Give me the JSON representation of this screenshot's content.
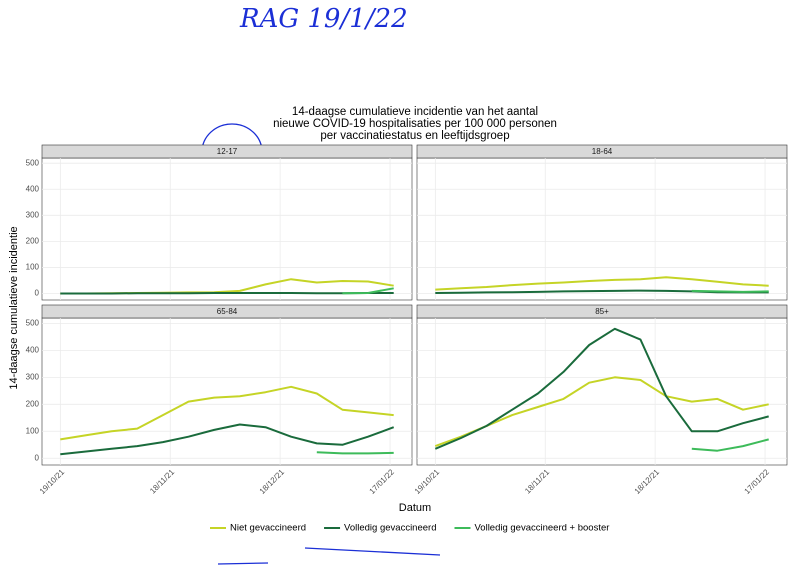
{
  "annotation": "RAG 19/1/22",
  "title": [
    "14-daagse cumulatieve incidentie van het aantal",
    "nieuwe COVID-19 hospitalisaties per 100 000 personen",
    "per vaccinatiestatus en leeftijdsgroep"
  ],
  "xlabel": "Datum",
  "ylabel": "14-daagse cumulatieve incidentie",
  "chart_data": [
    {
      "type": "line",
      "title": "12-17",
      "x": [
        "2021-10-19",
        "2021-10-26",
        "2021-11-02",
        "2021-11-09",
        "2021-11-16",
        "2021-11-23",
        "2021-11-30",
        "2021-12-07",
        "2021-12-14",
        "2021-12-21",
        "2021-12-28",
        "2022-01-04",
        "2022-01-11",
        "2022-01-18"
      ],
      "xlim": [
        "2021-10-14",
        "2022-01-23"
      ],
      "xticks": [
        {
          "value": "2021-10-19",
          "label": "19/10/21"
        },
        {
          "value": "2021-11-18",
          "label": "18/11/21"
        },
        {
          "value": "2021-12-18",
          "label": "18/12/21"
        },
        {
          "value": "2022-01-17",
          "label": "17/01/22"
        }
      ],
      "ylim": [
        -25,
        520
      ],
      "yticks": [
        0,
        100,
        200,
        300,
        400,
        500
      ],
      "series": [
        {
          "name": "Niet gevaccineerd",
          "color": "#c5d426",
          "values": [
            0,
            0,
            1,
            2,
            3,
            4,
            5,
            10,
            35,
            55,
            42,
            48,
            46,
            30
          ]
        },
        {
          "name": "Volledig gevaccineerd",
          "color": "#1a6b3c",
          "values": [
            0,
            0,
            0,
            1,
            1,
            1,
            2,
            2,
            2,
            2,
            1,
            1,
            2,
            2
          ]
        },
        {
          "name": "Volledig gevaccineerd + booster",
          "color": "#3dbb5a",
          "values": [
            null,
            null,
            null,
            null,
            null,
            null,
            null,
            null,
            null,
            null,
            null,
            1,
            2,
            20
          ]
        }
      ]
    },
    {
      "type": "line",
      "title": "18-64",
      "x": [
        "2021-10-19",
        "2021-10-26",
        "2021-11-02",
        "2021-11-09",
        "2021-11-16",
        "2021-11-23",
        "2021-11-30",
        "2021-12-07",
        "2021-12-14",
        "2021-12-21",
        "2021-12-28",
        "2022-01-04",
        "2022-01-11",
        "2022-01-18"
      ],
      "xlim": [
        "2021-10-14",
        "2022-01-23"
      ],
      "xticks": [
        {
          "value": "2021-10-19",
          "label": "19/10/21"
        },
        {
          "value": "2021-11-18",
          "label": "18/11/21"
        },
        {
          "value": "2021-12-18",
          "label": "18/12/21"
        },
        {
          "value": "2022-01-17",
          "label": "17/01/22"
        }
      ],
      "ylim": [
        -25,
        520
      ],
      "yticks": [
        0,
        100,
        200,
        300,
        400,
        500
      ],
      "series": [
        {
          "name": "Niet gevaccineerd",
          "color": "#c5d426",
          "values": [
            15,
            20,
            25,
            32,
            38,
            42,
            48,
            52,
            55,
            62,
            55,
            45,
            35,
            30
          ]
        },
        {
          "name": "Volledig gevaccineerd",
          "color": "#1a6b3c",
          "values": [
            2,
            3,
            4,
            5,
            6,
            8,
            9,
            10,
            11,
            10,
            8,
            5,
            4,
            4
          ]
        },
        {
          "name": "Volledig gevaccineerd + booster",
          "color": "#3dbb5a",
          "values": [
            null,
            null,
            null,
            null,
            null,
            null,
            null,
            null,
            null,
            null,
            10,
            8,
            6,
            8
          ]
        }
      ]
    },
    {
      "type": "line",
      "title": "65-84",
      "x": [
        "2021-10-19",
        "2021-10-26",
        "2021-11-02",
        "2021-11-09",
        "2021-11-16",
        "2021-11-23",
        "2021-11-30",
        "2021-12-07",
        "2021-12-14",
        "2021-12-21",
        "2021-12-28",
        "2022-01-04",
        "2022-01-11",
        "2022-01-18"
      ],
      "xlim": [
        "2021-10-14",
        "2022-01-23"
      ],
      "xticks": [
        {
          "value": "2021-10-19",
          "label": "19/10/21"
        },
        {
          "value": "2021-11-18",
          "label": "18/11/21"
        },
        {
          "value": "2021-12-18",
          "label": "18/12/21"
        },
        {
          "value": "2022-01-17",
          "label": "17/01/22"
        }
      ],
      "ylim": [
        -25,
        520
      ],
      "yticks": [
        0,
        100,
        200,
        300,
        400,
        500
      ],
      "series": [
        {
          "name": "Niet gevaccineerd",
          "color": "#c5d426",
          "values": [
            70,
            85,
            100,
            110,
            160,
            210,
            225,
            230,
            245,
            265,
            240,
            180,
            170,
            160
          ]
        },
        {
          "name": "Volledig gevaccineerd",
          "color": "#1a6b3c",
          "values": [
            15,
            25,
            35,
            45,
            60,
            80,
            105,
            125,
            115,
            80,
            55,
            50,
            80,
            115
          ]
        },
        {
          "name": "Volledig gevaccineerd + booster",
          "color": "#3dbb5a",
          "values": [
            null,
            null,
            null,
            null,
            null,
            null,
            null,
            null,
            null,
            null,
            22,
            18,
            18,
            20
          ]
        }
      ]
    },
    {
      "type": "line",
      "title": "85+",
      "x": [
        "2021-10-19",
        "2021-10-26",
        "2021-11-02",
        "2021-11-09",
        "2021-11-16",
        "2021-11-23",
        "2021-11-30",
        "2021-12-07",
        "2021-12-14",
        "2021-12-21",
        "2021-12-28",
        "2022-01-04",
        "2022-01-11",
        "2022-01-18"
      ],
      "xlim": [
        "2021-10-14",
        "2022-01-23"
      ],
      "xticks": [
        {
          "value": "2021-10-19",
          "label": "19/10/21"
        },
        {
          "value": "2021-11-18",
          "label": "18/11/21"
        },
        {
          "value": "2021-12-18",
          "label": "18/12/21"
        },
        {
          "value": "2022-01-17",
          "label": "17/01/22"
        }
      ],
      "ylim": [
        -25,
        520
      ],
      "yticks": [
        0,
        100,
        200,
        300,
        400,
        500
      ],
      "series": [
        {
          "name": "Niet gevaccineerd",
          "color": "#c5d426",
          "values": [
            45,
            80,
            120,
            160,
            190,
            220,
            280,
            300,
            290,
            230,
            210,
            220,
            180,
            200
          ]
        },
        {
          "name": "Volledig gevaccineerd",
          "color": "#1a6b3c",
          "values": [
            35,
            75,
            120,
            180,
            240,
            320,
            420,
            480,
            440,
            230,
            100,
            100,
            130,
            155
          ]
        },
        {
          "name": "Volledig gevaccineerd + booster",
          "color": "#3dbb5a",
          "values": [
            null,
            null,
            null,
            null,
            null,
            null,
            null,
            null,
            null,
            null,
            35,
            28,
            45,
            70
          ]
        }
      ]
    }
  ]
}
